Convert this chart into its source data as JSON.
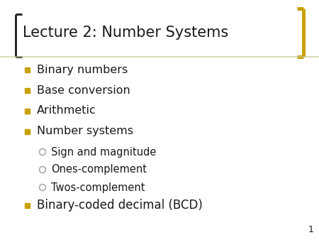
{
  "title": "Lecture 2: Number Systems",
  "title_fontsize": 15,
  "title_color": "#1a1a1a",
  "background_color": "#ffffff",
  "bullet_color": "#c8a000",
  "sub_bullet_color": "#aaaaaa",
  "text_color": "#1a1a1a",
  "page_number": "1",
  "bullet_items": [
    {
      "text": "Binary numbers",
      "level": 0
    },
    {
      "text": "Base conversion",
      "level": 0
    },
    {
      "text": "Arithmetic",
      "level": 0
    },
    {
      "text": "Number systems",
      "level": 0
    },
    {
      "text": "Sign and magnitude",
      "level": 1
    },
    {
      "text": "Ones-complement",
      "level": 1
    },
    {
      "text": "Twos-complement",
      "level": 1
    },
    {
      "text": "Binary-coded decimal (BCD)",
      "level": 0
    }
  ],
  "bracket_color": "#1a1a1a",
  "bracket_accent_color": "#c8a000",
  "title_line_color": "#c8c890"
}
